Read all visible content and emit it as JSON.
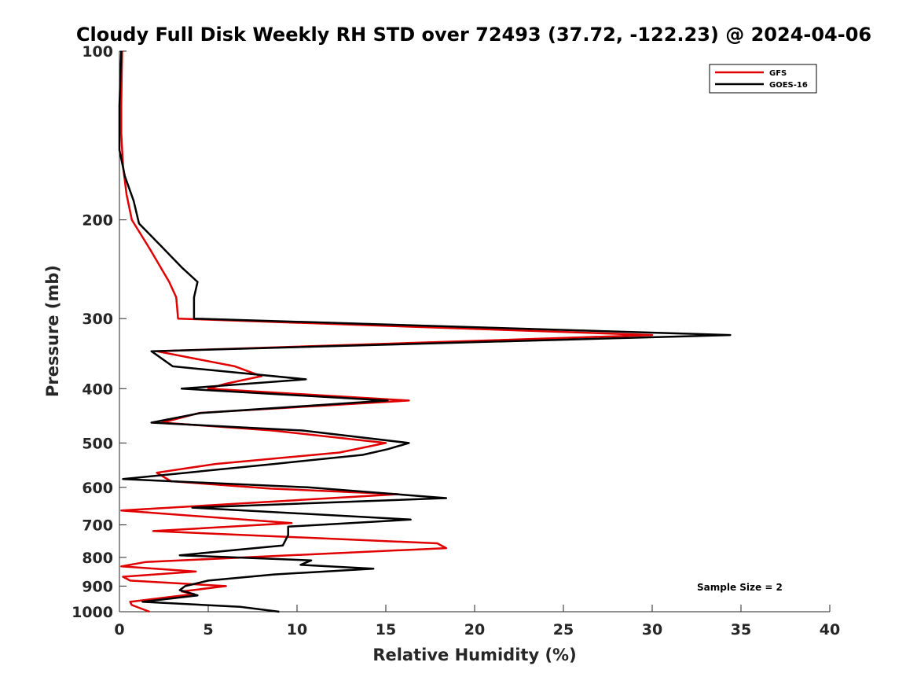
{
  "chart_data": {
    "type": "line",
    "title": "Cloudy Full Disk Weekly RH STD over 72493 (37.72, -122.23) @ 2024-04-06",
    "xlabel": "Relative Humidity (%)",
    "ylabel": "Pressure (mb)",
    "xlim": [
      0,
      40
    ],
    "ylim": [
      100,
      1000
    ],
    "y_scale": "log",
    "y_reversed": true,
    "x_ticks": [
      0,
      5,
      10,
      15,
      20,
      25,
      30,
      35,
      40
    ],
    "y_ticks": [
      100,
      200,
      300,
      400,
      500,
      600,
      700,
      800,
      900,
      1000
    ],
    "grid": false,
    "legend_position": "top-right",
    "annotation": "Sample Size = 2",
    "series": [
      {
        "name": "GFS",
        "color": "#e00000",
        "points": [
          [
            0.15,
            100
          ],
          [
            0.1,
            125
          ],
          [
            0.1,
            140
          ],
          [
            0.2,
            160
          ],
          [
            0.4,
            180
          ],
          [
            0.7,
            200
          ],
          [
            1.7,
            225
          ],
          [
            2.8,
            258
          ],
          [
            3.2,
            275
          ],
          [
            3.3,
            300
          ],
          [
            30.0,
            321
          ],
          [
            2.1,
            343
          ],
          [
            6.5,
            365
          ],
          [
            8.0,
            380
          ],
          [
            6.0,
            392
          ],
          [
            5.0,
            400
          ],
          [
            16.3,
            420
          ],
          [
            4.5,
            442
          ],
          [
            2.4,
            460
          ],
          [
            8.6,
            475
          ],
          [
            15.0,
            500
          ],
          [
            12.4,
            520
          ],
          [
            5.4,
            545
          ],
          [
            2.1,
            565
          ],
          [
            2.9,
            585
          ],
          [
            8.5,
            603
          ],
          [
            15.7,
            617
          ],
          [
            0.1,
            660
          ],
          [
            9.7,
            695
          ],
          [
            1.9,
            718
          ],
          [
            17.9,
            755
          ],
          [
            18.4,
            770
          ],
          [
            1.5,
            815
          ],
          [
            0.1,
            830
          ],
          [
            4.3,
            848
          ],
          [
            0.2,
            866
          ],
          [
            0.6,
            880
          ],
          [
            6.0,
            900
          ],
          [
            3.5,
            920
          ],
          [
            4.2,
            930
          ],
          [
            0.6,
            960
          ],
          [
            0.7,
            973
          ],
          [
            1.7,
            1000
          ]
        ]
      },
      {
        "name": "GOES-16",
        "color": "#000000",
        "points": [
          [
            0.1,
            100
          ],
          [
            0.0,
            125
          ],
          [
            0.0,
            150
          ],
          [
            0.3,
            167
          ],
          [
            0.8,
            185
          ],
          [
            1.1,
            203
          ],
          [
            2.3,
            222
          ],
          [
            3.5,
            243
          ],
          [
            4.4,
            258
          ],
          [
            4.2,
            275
          ],
          [
            4.2,
            300
          ],
          [
            34.4,
            321
          ],
          [
            1.8,
            343
          ],
          [
            3.0,
            365
          ],
          [
            10.5,
            385
          ],
          [
            3.5,
            400
          ],
          [
            15.1,
            420
          ],
          [
            4.6,
            442
          ],
          [
            1.8,
            460
          ],
          [
            10.3,
            475
          ],
          [
            16.3,
            500
          ],
          [
            15.1,
            513
          ],
          [
            13.7,
            525
          ],
          [
            8.7,
            545
          ],
          [
            0.2,
            580
          ],
          [
            10.6,
            600
          ],
          [
            18.4,
            627
          ],
          [
            4.1,
            652
          ],
          [
            16.4,
            685
          ],
          [
            9.5,
            705
          ],
          [
            9.5,
            730
          ],
          [
            9.2,
            762
          ],
          [
            3.4,
            793
          ],
          [
            10.8,
            810
          ],
          [
            10.2,
            825
          ],
          [
            14.3,
            838
          ],
          [
            8.7,
            858
          ],
          [
            5.0,
            880
          ],
          [
            3.7,
            900
          ],
          [
            3.4,
            915
          ],
          [
            4.4,
            935
          ],
          [
            1.3,
            960
          ],
          [
            6.8,
            980
          ],
          [
            9.0,
            1000
          ]
        ]
      }
    ]
  }
}
